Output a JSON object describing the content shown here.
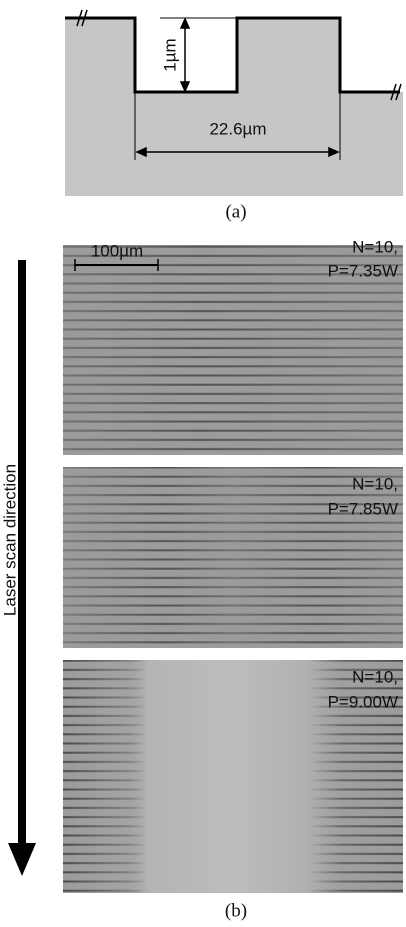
{
  "panel_a": {
    "height_label": "1µm",
    "width_label": "22.6µm",
    "caption": "(a)"
  },
  "panel_b": {
    "scale_bar_label": "100µm",
    "images": [
      {
        "line1": "N=10,",
        "line2": "P=7.35W"
      },
      {
        "line1": "N=10,",
        "line2": "P=7.85W"
      },
      {
        "line1": "N=10,",
        "line2": "P=9.00W"
      }
    ],
    "arrow_label": "Laser scan direction",
    "caption": "(b)"
  }
}
